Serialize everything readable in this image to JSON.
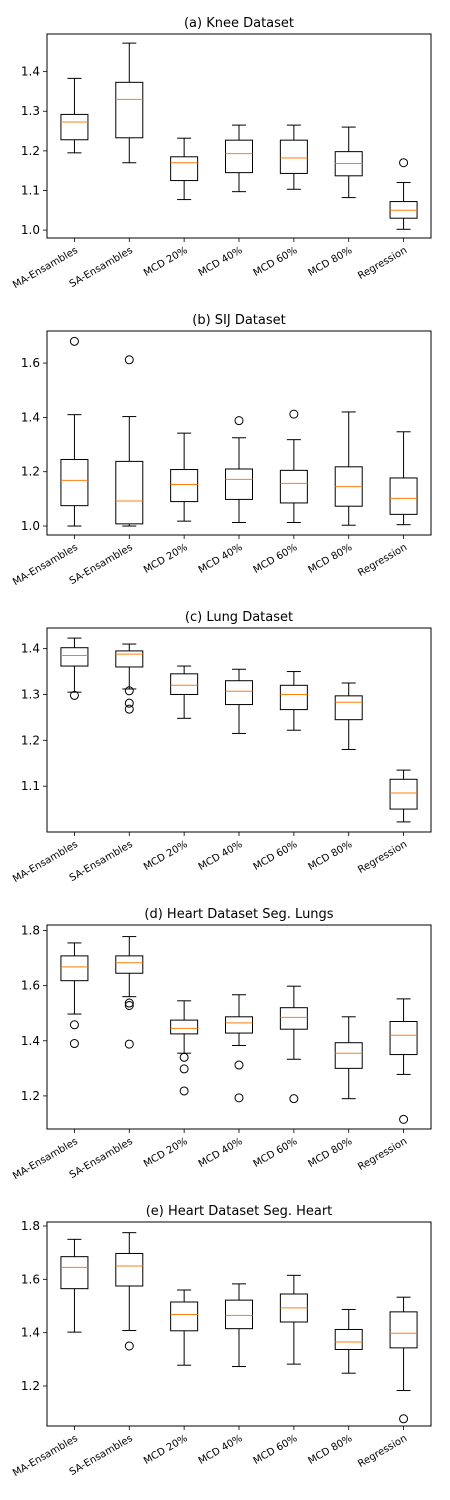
{
  "chart_data": [
    {
      "type": "box",
      "title": "(a) Knee Dataset",
      "categories": [
        "MA-Ensambles",
        "SA-Ensambles",
        "MCD 20%",
        "MCD 40%",
        "MCD 60%",
        "MCD 80%",
        "Regression"
      ],
      "ylim": [
        0.98,
        1.495
      ],
      "yticks": [
        1.0,
        1.1,
        1.2,
        1.3,
        1.4
      ],
      "ytick_labels": [
        "1.0",
        "1.1",
        "1.2",
        "1.3",
        "1.4"
      ],
      "boxes": [
        {
          "whislo": 1.195,
          "q1": 1.228,
          "med": 1.273,
          "q3": 1.292,
          "whishi": 1.383,
          "fliers": []
        },
        {
          "whislo": 1.17,
          "q1": 1.233,
          "med": 1.33,
          "q3": 1.373,
          "whishi": 1.472,
          "fliers": []
        },
        {
          "whislo": 1.077,
          "q1": 1.125,
          "med": 1.17,
          "q3": 1.185,
          "whishi": 1.232,
          "fliers": []
        },
        {
          "whislo": 1.097,
          "q1": 1.145,
          "med": 1.193,
          "q3": 1.227,
          "whishi": 1.265,
          "fliers": []
        },
        {
          "whislo": 1.103,
          "q1": 1.143,
          "med": 1.182,
          "q3": 1.227,
          "whishi": 1.265,
          "fliers": []
        },
        {
          "whislo": 1.082,
          "q1": 1.137,
          "med": 1.168,
          "q3": 1.198,
          "whishi": 1.26,
          "fliers": []
        },
        {
          "whislo": 1.002,
          "q1": 1.03,
          "med": 1.05,
          "q3": 1.072,
          "whishi": 1.12,
          "fliers": [
            1.17
          ]
        }
      ]
    },
    {
      "type": "box",
      "title": "(b) SIJ Dataset",
      "categories": [
        "MA-Ensambles",
        "SA-Ensambles",
        "MCD 20%",
        "MCD 40%",
        "MCD 60%",
        "MCD 80%",
        "Regression"
      ],
      "ylim": [
        0.967,
        1.718
      ],
      "yticks": [
        1.0,
        1.2,
        1.4,
        1.6
      ],
      "ytick_labels": [
        "1.0",
        "1.2",
        "1.4",
        "1.6"
      ],
      "boxes": [
        {
          "whislo": 1.0,
          "q1": 1.075,
          "med": 1.168,
          "q3": 1.245,
          "whishi": 1.41,
          "fliers": [
            1.68
          ]
        },
        {
          "whislo": 1.0,
          "q1": 1.008,
          "med": 1.092,
          "q3": 1.238,
          "whishi": 1.403,
          "fliers": [
            1.612
          ]
        },
        {
          "whislo": 1.018,
          "q1": 1.09,
          "med": 1.153,
          "q3": 1.208,
          "whishi": 1.342,
          "fliers": []
        },
        {
          "whislo": 1.013,
          "q1": 1.098,
          "med": 1.172,
          "q3": 1.21,
          "whishi": 1.325,
          "fliers": [
            1.388
          ]
        },
        {
          "whislo": 1.013,
          "q1": 1.085,
          "med": 1.157,
          "q3": 1.205,
          "whishi": 1.318,
          "fliers": [
            1.412
          ]
        },
        {
          "whislo": 1.003,
          "q1": 1.073,
          "med": 1.145,
          "q3": 1.218,
          "whishi": 1.42,
          "fliers": []
        },
        {
          "whislo": 1.005,
          "q1": 1.043,
          "med": 1.102,
          "q3": 1.177,
          "whishi": 1.347,
          "fliers": []
        }
      ]
    },
    {
      "type": "box",
      "title": "(c) Lung Dataset",
      "categories": [
        "MA-Ensambles",
        "SA-Ensambles",
        "MCD 20%",
        "MCD 40%",
        "MCD 60%",
        "MCD 80%",
        "Regression"
      ],
      "ylim": [
        1.0,
        1.445
      ],
      "yticks": [
        1.1,
        1.2,
        1.3,
        1.4
      ],
      "ytick_labels": [
        "1.1",
        "1.2",
        "1.3",
        "1.4"
      ],
      "boxes": [
        {
          "whislo": 1.305,
          "q1": 1.362,
          "med": 1.385,
          "q3": 1.402,
          "whishi": 1.423,
          "fliers": [
            1.298
          ]
        },
        {
          "whislo": 1.312,
          "q1": 1.36,
          "med": 1.388,
          "q3": 1.395,
          "whishi": 1.41,
          "fliers": [
            1.308,
            1.281,
            1.268
          ]
        },
        {
          "whislo": 1.248,
          "q1": 1.3,
          "med": 1.32,
          "q3": 1.345,
          "whishi": 1.362,
          "fliers": []
        },
        {
          "whislo": 1.215,
          "q1": 1.278,
          "med": 1.307,
          "q3": 1.33,
          "whishi": 1.355,
          "fliers": []
        },
        {
          "whislo": 1.222,
          "q1": 1.267,
          "med": 1.3,
          "q3": 1.32,
          "whishi": 1.35,
          "fliers": []
        },
        {
          "whislo": 1.18,
          "q1": 1.245,
          "med": 1.283,
          "q3": 1.297,
          "whishi": 1.325,
          "fliers": []
        },
        {
          "whislo": 1.022,
          "q1": 1.05,
          "med": 1.085,
          "q3": 1.115,
          "whishi": 1.135,
          "fliers": []
        }
      ]
    },
    {
      "type": "box",
      "title": "(d) Heart Dataset Seg. Lungs",
      "categories": [
        "MA-Ensambles",
        "SA-Ensambles",
        "MCD 20%",
        "MCD 40%",
        "MCD 60%",
        "MCD 80%",
        "Regression"
      ],
      "ylim": [
        1.08,
        1.82
      ],
      "yticks": [
        1.2,
        1.4,
        1.6,
        1.8
      ],
      "ytick_labels": [
        "1.2",
        "1.4",
        "1.6",
        "1.8"
      ],
      "boxes": [
        {
          "whislo": 1.497,
          "q1": 1.618,
          "med": 1.668,
          "q3": 1.708,
          "whishi": 1.755,
          "fliers": [
            1.458,
            1.39
          ]
        },
        {
          "whislo": 1.56,
          "q1": 1.645,
          "med": 1.683,
          "q3": 1.708,
          "whishi": 1.778,
          "fliers": [
            1.537,
            1.528,
            1.388
          ]
        },
        {
          "whislo": 1.355,
          "q1": 1.425,
          "med": 1.445,
          "q3": 1.475,
          "whishi": 1.545,
          "fliers": [
            1.34,
            1.298,
            1.218
          ]
        },
        {
          "whislo": 1.383,
          "q1": 1.428,
          "med": 1.465,
          "q3": 1.487,
          "whishi": 1.567,
          "fliers": [
            1.312,
            1.193
          ]
        },
        {
          "whislo": 1.333,
          "q1": 1.442,
          "med": 1.485,
          "q3": 1.52,
          "whishi": 1.598,
          "fliers": [
            1.19
          ]
        },
        {
          "whislo": 1.19,
          "q1": 1.3,
          "med": 1.355,
          "q3": 1.393,
          "whishi": 1.487,
          "fliers": []
        },
        {
          "whislo": 1.278,
          "q1": 1.35,
          "med": 1.42,
          "q3": 1.47,
          "whishi": 1.552,
          "fliers": [
            1.115
          ]
        }
      ]
    },
    {
      "type": "box",
      "title": "(e) Heart Dataset Seg. Heart",
      "categories": [
        "MA-Ensambles",
        "SA-Ensambles",
        "MCD 20%",
        "MCD 40%",
        "MCD 60%",
        "MCD 80%",
        "Regression"
      ],
      "ylim": [
        1.05,
        1.815
      ],
      "yticks": [
        1.2,
        1.4,
        1.6,
        1.8
      ],
      "ytick_labels": [
        "1.2",
        "1.4",
        "1.6",
        "1.8"
      ],
      "boxes": [
        {
          "whislo": 1.402,
          "q1": 1.565,
          "med": 1.645,
          "q3": 1.685,
          "whishi": 1.75,
          "fliers": []
        },
        {
          "whislo": 1.408,
          "q1": 1.575,
          "med": 1.65,
          "q3": 1.697,
          "whishi": 1.775,
          "fliers": [
            1.35
          ]
        },
        {
          "whislo": 1.278,
          "q1": 1.407,
          "med": 1.468,
          "q3": 1.515,
          "whishi": 1.56,
          "fliers": []
        },
        {
          "whislo": 1.273,
          "q1": 1.415,
          "med": 1.465,
          "q3": 1.522,
          "whishi": 1.583,
          "fliers": []
        },
        {
          "whislo": 1.282,
          "q1": 1.44,
          "med": 1.493,
          "q3": 1.545,
          "whishi": 1.615,
          "fliers": []
        },
        {
          "whislo": 1.248,
          "q1": 1.337,
          "med": 1.365,
          "q3": 1.412,
          "whishi": 1.487,
          "fliers": []
        },
        {
          "whislo": 1.183,
          "q1": 1.343,
          "med": 1.398,
          "q3": 1.478,
          "whishi": 1.533,
          "fliers": [
            1.077
          ]
        }
      ]
    }
  ],
  "colors": {
    "box": "#000000",
    "median": "#ff7f0e",
    "flier": "#000000"
  }
}
